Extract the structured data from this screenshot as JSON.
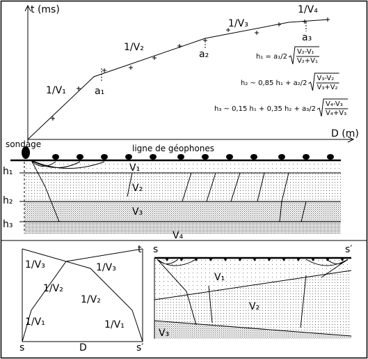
{
  "time_graph": {
    "y_axis_label": "t (ms)",
    "x_axis_label": "D (m)",
    "slope_labels": [
      "1/V₁",
      "1/V₂",
      "1/V₃",
      "1/V₄"
    ],
    "intercept_labels": [
      "a₁",
      "a₂",
      "a₃"
    ],
    "formulas": [
      {
        "lhs": "h₁ = a₁/2",
        "numerator": "V₂-V₁",
        "denominator": "V₂+V₁"
      },
      {
        "lhs": "h₂ ~ 0,85 h₁ + a₂/2",
        "numerator": "V₃-V₂",
        "denominator": "V₃+V₂"
      },
      {
        "lhs": "h₃ ~ 0,15 h₁ + 0,35 h₂ + a₃/2",
        "numerator": "V₄-V₃",
        "denominator": "V₄+V₃"
      }
    ]
  },
  "section": {
    "borehole_label": "sondage",
    "geophone_label": "ligne de géophones",
    "depth_labels": [
      "h₁",
      "h₂",
      "h₃"
    ],
    "layer_labels": [
      "V₁",
      "V₂",
      "V₃",
      "V₄"
    ]
  },
  "reversed_graph": {
    "time_label": "t",
    "slope_labels": [
      "1/V₃",
      "1/V₃",
      "1/V₂",
      "1/V₂",
      "1/V₁",
      "1/V₁"
    ],
    "source": "s",
    "distance": "D",
    "receiver": "s′"
  },
  "dipping_section": {
    "source": "s",
    "receiver": "s′",
    "layer_labels": [
      "V₁",
      "V₂",
      "V₃"
    ]
  }
}
